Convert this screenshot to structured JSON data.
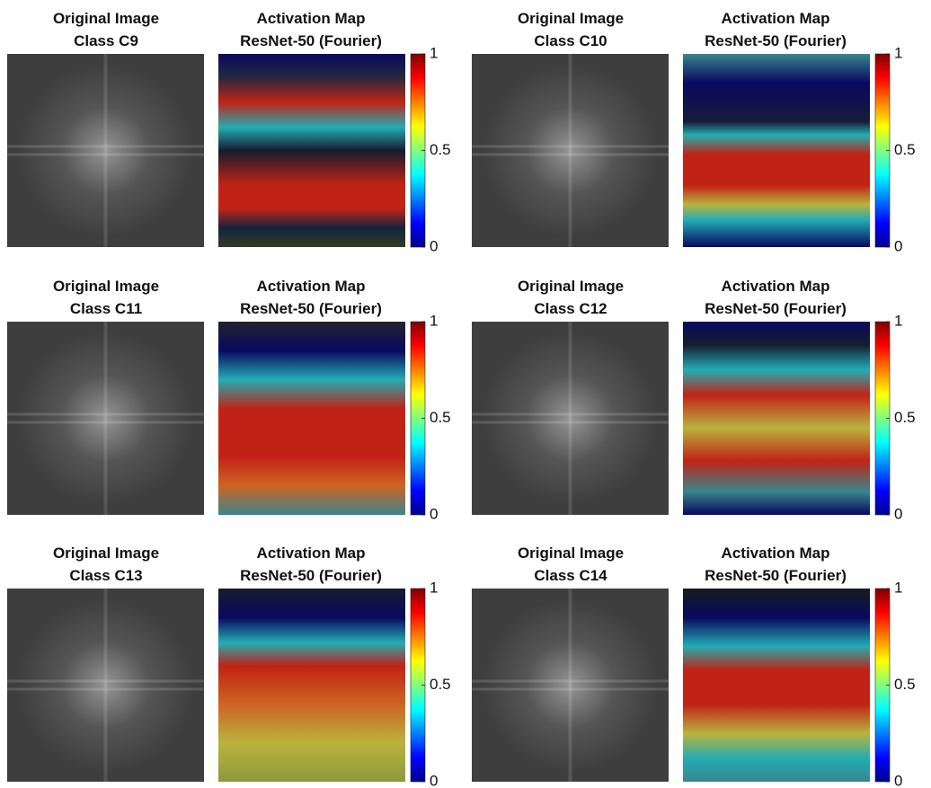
{
  "panels": [
    {
      "original_title": [
        "Original Image",
        "Class C9"
      ],
      "activation_title": [
        "Activation Map",
        "ResNet-50 (Fourier)"
      ]
    },
    {
      "original_title": [
        "Original Image",
        "Class C10"
      ],
      "activation_title": [
        "Activation Map",
        "ResNet-50 (Fourier)"
      ]
    },
    {
      "original_title": [
        "Original Image",
        "Class C11"
      ],
      "activation_title": [
        "Activation Map",
        "ResNet-50 (Fourier)"
      ]
    },
    {
      "original_title": [
        "Original Image",
        "Class C12"
      ],
      "activation_title": [
        "Activation Map",
        "ResNet-50 (Fourier)"
      ]
    },
    {
      "original_title": [
        "Original Image",
        "Class C13"
      ],
      "activation_title": [
        "Activation Map",
        "ResNet-50 (Fourier)"
      ]
    },
    {
      "original_title": [
        "Original Image",
        "Class C14"
      ],
      "activation_title": [
        "Activation Map",
        "ResNet-50 (Fourier)"
      ]
    }
  ],
  "colorbar": {
    "lim": [
      0,
      1
    ],
    "ticks": [
      0,
      0.5,
      1
    ]
  }
}
